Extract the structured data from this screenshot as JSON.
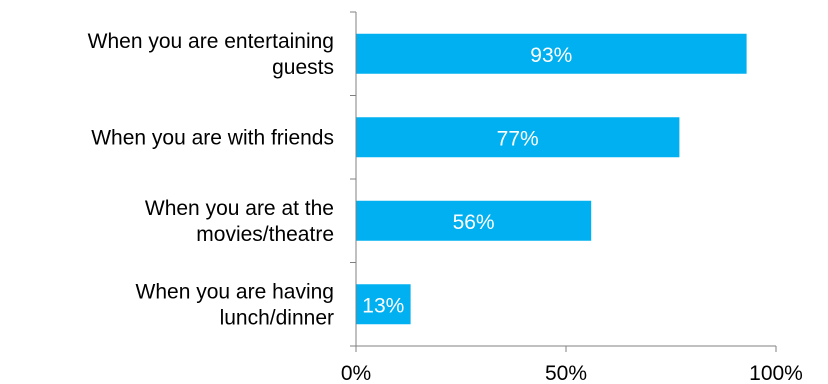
{
  "chart_data": {
    "type": "bar",
    "orientation": "horizontal",
    "categories": [
      [
        "When you are entertaining",
        "guests"
      ],
      [
        "When you are with friends"
      ],
      [
        "When you are at the",
        "movies/theatre"
      ],
      [
        "When you are having",
        "lunch/dinner"
      ]
    ],
    "values": [
      93,
      77,
      56,
      13
    ],
    "data_labels": [
      "93%",
      "77%",
      "56%",
      "13%"
    ],
    "xlim": [
      0,
      100
    ],
    "x_ticks": [
      0,
      50,
      100
    ],
    "x_tick_labels": [
      "0%",
      "50%",
      "100%"
    ],
    "grid": false,
    "bar_color": "#00B0F0",
    "axis_color": "#808080"
  }
}
